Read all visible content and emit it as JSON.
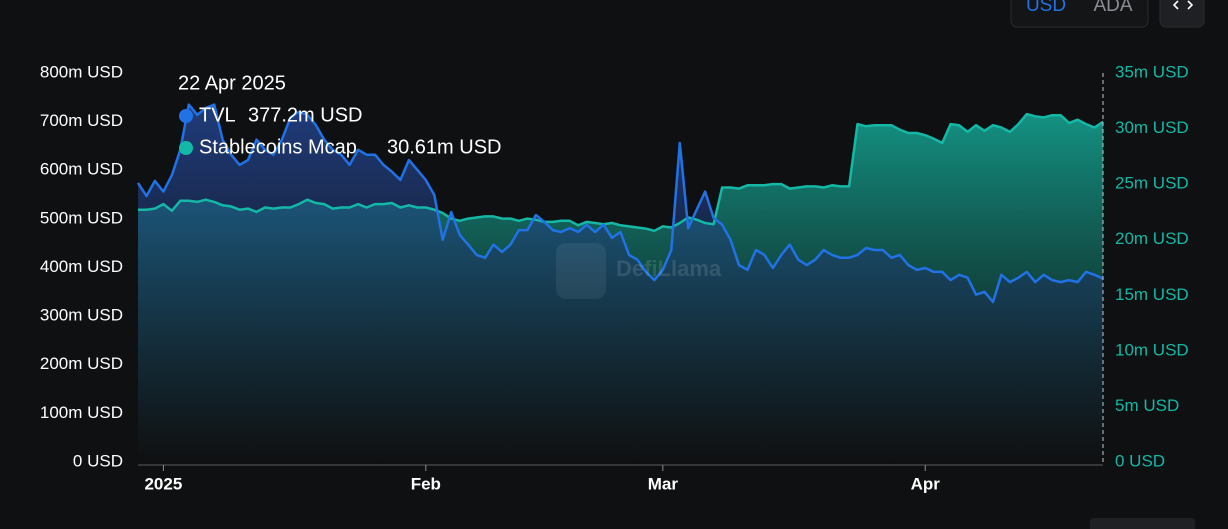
{
  "chart_data": {
    "type": "area",
    "controls": {
      "currencies": [
        "USD",
        "ADA"
      ],
      "active_color": "#2172e5"
    },
    "watermark": "DefiLlama",
    "categories": [
      null,
      null,
      null,
      "2025",
      null,
      null,
      null,
      null,
      null,
      null,
      null,
      null,
      null,
      null,
      null,
      null,
      null,
      null,
      null,
      null,
      null,
      null,
      null,
      null,
      null,
      null,
      null,
      null,
      null,
      null,
      null,
      null,
      null,
      null,
      "Feb",
      null,
      null,
      null,
      null,
      null,
      null,
      null,
      null,
      null,
      null,
      null,
      null,
      null,
      null,
      null,
      null,
      null,
      null,
      null,
      null,
      null,
      null,
      null,
      null,
      null,
      null,
      null,
      "Mar",
      null,
      null,
      null,
      null,
      null,
      null,
      null,
      null,
      null,
      null,
      null,
      null,
      null,
      null,
      null,
      null,
      null,
      null,
      null,
      null,
      null,
      null,
      null,
      null,
      null,
      null,
      null,
      null,
      null,
      null,
      "Apr",
      null,
      null,
      null,
      null,
      null,
      null,
      null,
      null,
      null,
      null,
      null,
      null,
      null,
      null,
      null,
      null,
      null,
      null,
      null,
      null,
      null
    ],
    "series": [
      {
        "name": "TVL",
        "color": "#2172e5",
        "values": [
          574,
          547,
          578,
          556,
          590,
          642,
          735,
          714,
          728,
          735,
          663,
          632,
          611,
          621,
          663,
          642,
          632,
          663,
          708,
          720,
          714,
          693,
          663,
          642,
          632,
          611,
          642,
          632,
          632,
          611,
          597,
          580,
          621,
          601,
          580,
          549,
          457,
          514,
          467,
          447,
          426,
          420,
          447,
          432,
          447,
          477,
          477,
          508,
          494,
          477,
          473,
          481,
          473,
          488,
          473,
          488,
          461,
          473,
          426,
          416,
          391,
          374,
          395,
          436,
          656,
          481,
          519,
          556,
          502,
          488,
          457,
          405,
          395,
          436,
          426,
          399,
          426,
          447,
          416,
          405,
          416,
          436,
          426,
          420,
          420,
          426,
          440,
          436,
          436,
          420,
          426,
          405,
          395,
          399,
          391,
          391,
          374,
          385,
          379,
          344,
          350,
          329,
          385,
          370,
          379,
          391,
          370,
          385,
          374,
          370,
          374,
          370,
          391,
          385,
          377.2
        ]
      },
      {
        "name": "Stablecoins Mcap",
        "color": "#14b8a6",
        "axis": "y2",
        "values": [
          22.7,
          22.7,
          22.8,
          23.2,
          22.6,
          23.5,
          23.5,
          23.4,
          23.6,
          23.4,
          23.1,
          23.0,
          22.7,
          22.8,
          22.5,
          22.9,
          22.8,
          22.9,
          22.9,
          23.2,
          23.6,
          23.3,
          23.2,
          22.8,
          22.9,
          22.9,
          23.2,
          22.9,
          23.2,
          23.2,
          23.3,
          22.9,
          23.1,
          22.9,
          22.9,
          22.7,
          22.4,
          21.9,
          21.7,
          21.9,
          22.0,
          22.1,
          22.1,
          21.9,
          21.9,
          21.7,
          21.9,
          21.8,
          21.6,
          21.6,
          21.7,
          21.7,
          21.3,
          21.6,
          21.5,
          21.4,
          21.5,
          21.3,
          21.2,
          21.1,
          21.0,
          20.8,
          21.2,
          21.1,
          21.5,
          22.0,
          21.8,
          21.5,
          21.4,
          24.7,
          24.7,
          24.6,
          24.9,
          24.9,
          24.9,
          25.0,
          25.0,
          24.6,
          24.7,
          24.8,
          24.8,
          24.7,
          24.9,
          24.8,
          24.8,
          30.4,
          30.2,
          30.3,
          30.3,
          30.3,
          29.9,
          29.6,
          29.6,
          29.4,
          29.1,
          28.7,
          30.4,
          30.3,
          29.7,
          30.3,
          29.8,
          30.3,
          30.1,
          29.7,
          30.4,
          31.3,
          31.1,
          31.0,
          31.2,
          31.2,
          30.5,
          30.8,
          30.4,
          30.1,
          30.61
        ]
      }
    ],
    "ylim": [
      0,
      800
    ],
    "yticks": [
      {
        "value": 0,
        "label": "0 USD"
      },
      {
        "value": 100,
        "label": "100m USD"
      },
      {
        "value": 200,
        "label": "200m USD"
      },
      {
        "value": 300,
        "label": "300m USD"
      },
      {
        "value": 400,
        "label": "400m USD"
      },
      {
        "value": 500,
        "label": "500m USD"
      },
      {
        "value": 600,
        "label": "600m USD"
      },
      {
        "value": 700,
        "label": "700m USD"
      },
      {
        "value": 800,
        "label": "800m USD"
      }
    ],
    "y2lim": [
      0,
      35
    ],
    "y2ticks": [
      {
        "value": 0,
        "label": "0 USD"
      },
      {
        "value": 5,
        "label": "5m USD"
      },
      {
        "value": 10,
        "label": "10m USD"
      },
      {
        "value": 15,
        "label": "15m USD"
      },
      {
        "value": 20,
        "label": "20m USD"
      },
      {
        "value": 25,
        "label": "25m USD"
      },
      {
        "value": 30,
        "label": "30m USD"
      },
      {
        "value": 35,
        "label": "35m USD"
      }
    ],
    "tooltip": {
      "title": "22 Apr 2025",
      "value_labels": [
        "377.2m USD",
        "30.61m USD"
      ]
    }
  }
}
